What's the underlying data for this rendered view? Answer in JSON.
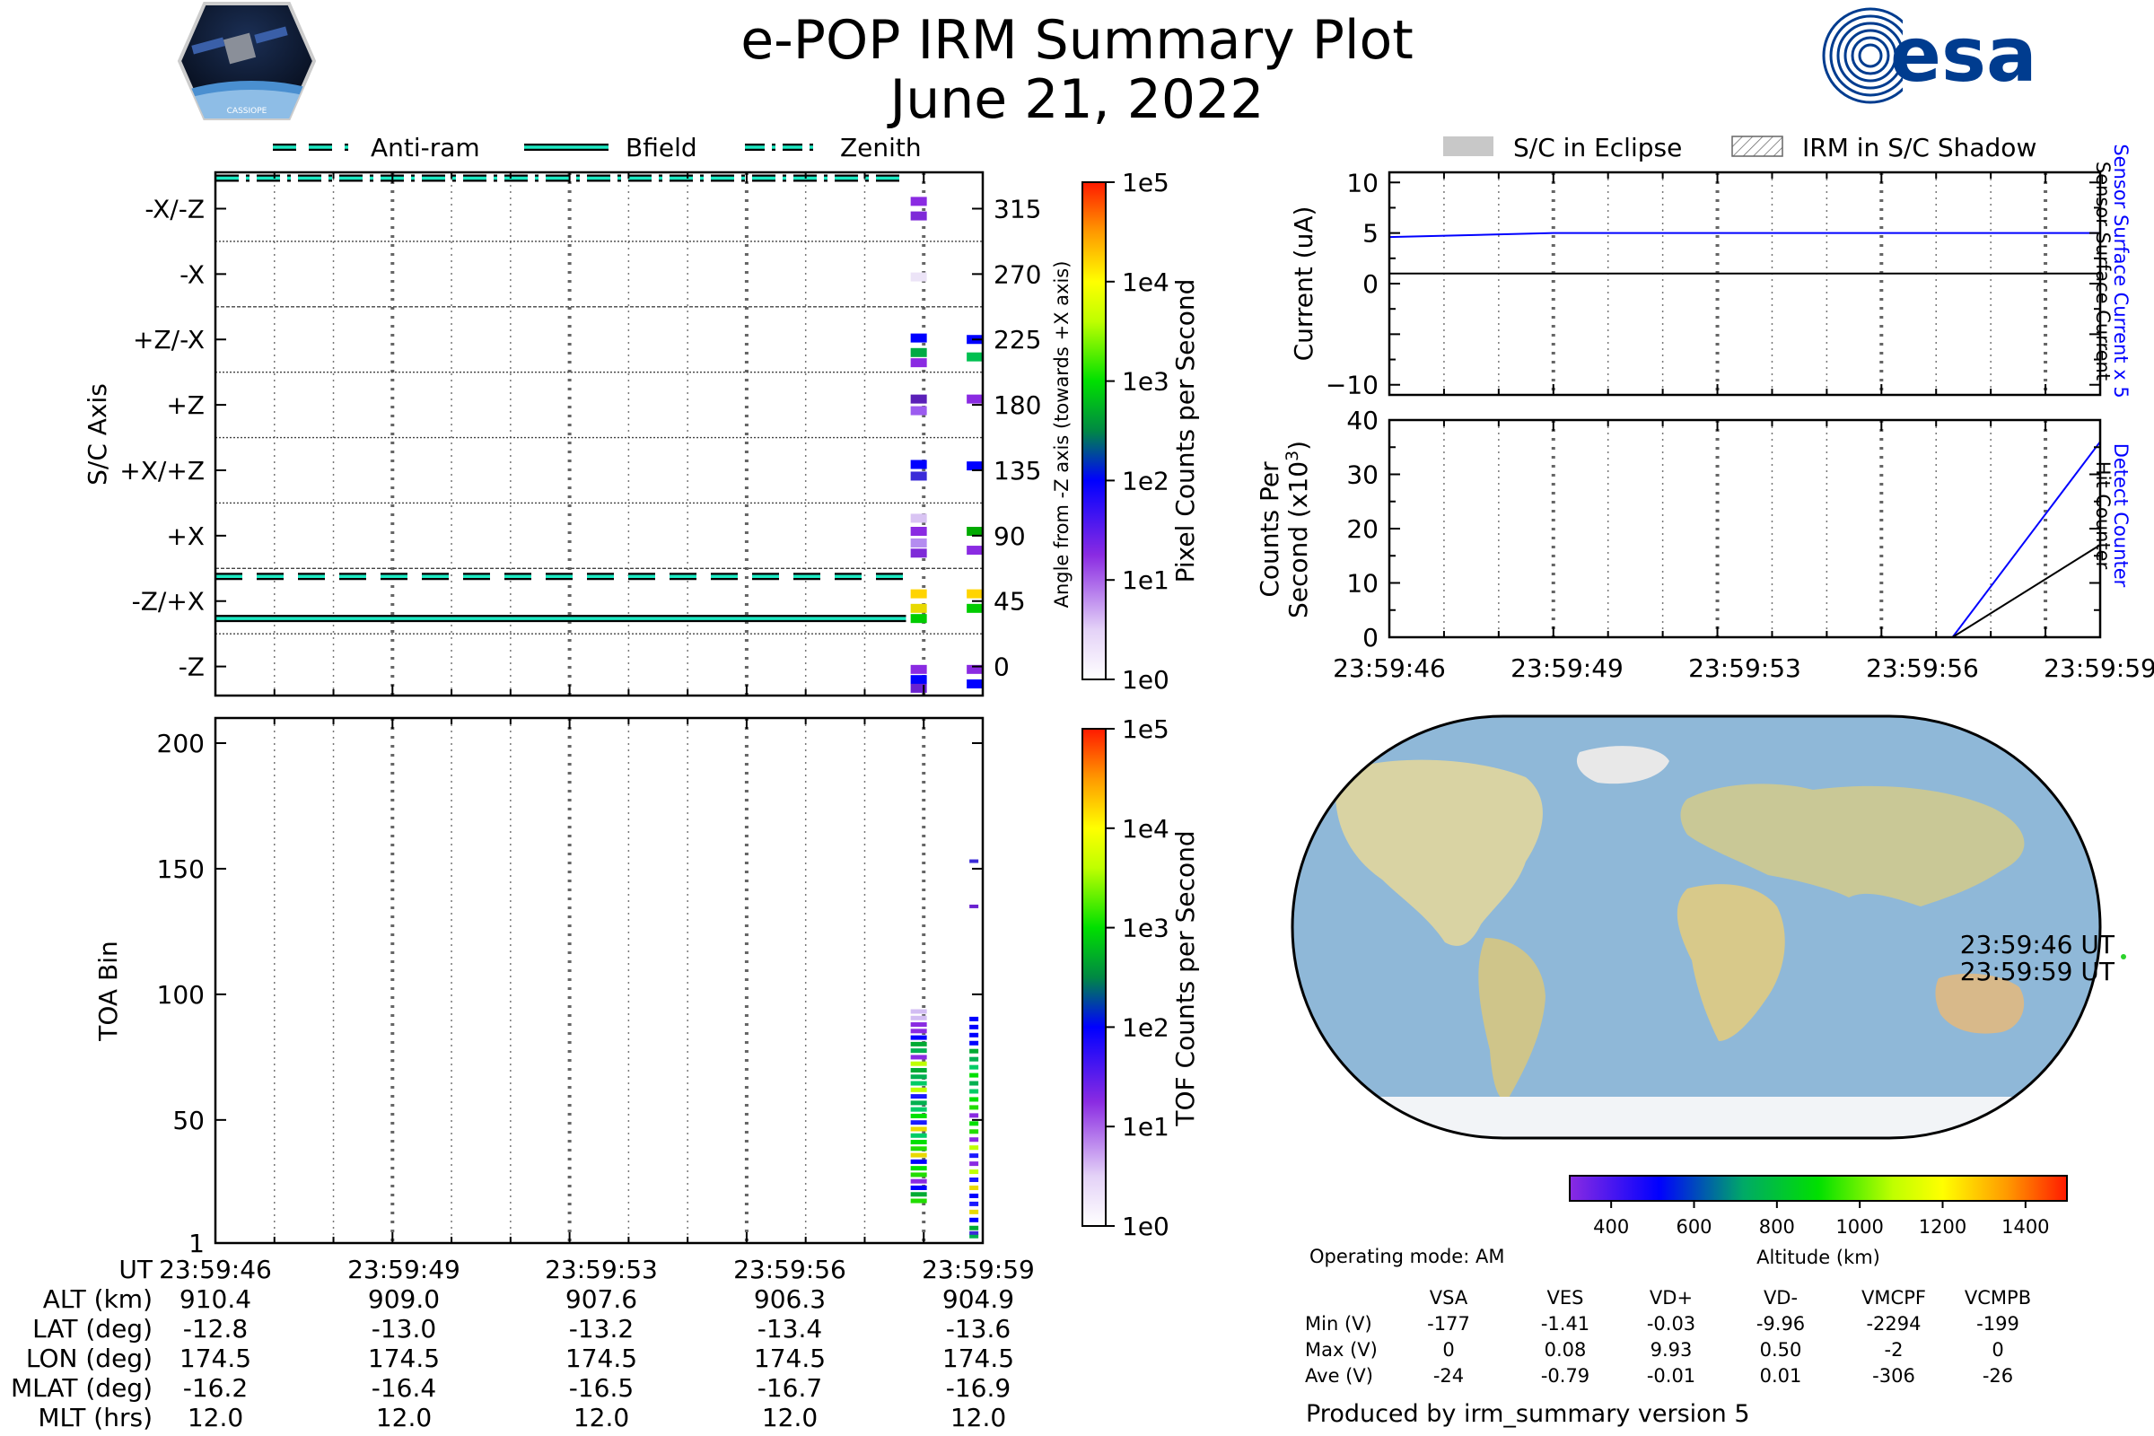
{
  "header": {
    "title": "e-POP IRM Summary Plot",
    "date": "June 21, 2022",
    "mission_logo_text": "CASSIOPE",
    "agency_logo_text": "esa"
  },
  "legend_top_left": [
    {
      "label": "Anti-ram",
      "style": "dashed"
    },
    {
      "label": "Bfield",
      "style": "solid"
    },
    {
      "label": "Zenith",
      "style": "dashdot"
    }
  ],
  "legend_top_right": [
    {
      "label": "S/C in Eclipse",
      "style": "gray-fill"
    },
    {
      "label": "IRM in S/C Shadow",
      "style": "hatch"
    }
  ],
  "colors": {
    "cyan": "#1de9c3",
    "blue_trace": "#0000ff",
    "black": "#000000"
  },
  "chart_data": [
    {
      "id": "sc_axis",
      "type": "heatmap",
      "ylabel": "S/C Axis",
      "right_ylabel": "Angle from -Z axis (towards +X axis)",
      "y_categories": [
        "-X/-Z",
        "-X",
        "+Z/-X",
        "+Z",
        "+X/+Z",
        "+X",
        "-Z/+X",
        "-Z"
      ],
      "right_ticks": [
        "315",
        "270",
        "225",
        "180",
        "135",
        "90",
        "45",
        "0"
      ],
      "ylim": [
        -20,
        340
      ],
      "time_range": [
        0,
        13
      ],
      "reference_lines": [
        {
          "name": "Zenith",
          "angle": 336,
          "style": "dashdot",
          "t_end": 11.7
        },
        {
          "name": "Anti-ram",
          "angle": 62,
          "style": "dashed",
          "t_end": 11.7
        },
        {
          "name": "Bfield",
          "angle": 33,
          "style": "solid",
          "t_end": 11.7
        }
      ],
      "colorbar": {
        "label": "Pixel Counts per Second",
        "ticks": [
          "1e0",
          "1e1",
          "1e2",
          "1e3",
          "1e4",
          "1e5"
        ]
      }
    },
    {
      "id": "toa",
      "type": "heatmap",
      "ylabel": "TOA Bin",
      "ylim": [
        1,
        210
      ],
      "yticks": [
        "1",
        "50",
        "100",
        "150",
        "200"
      ],
      "ytick_values": [
        1,
        50,
        100,
        150,
        200
      ],
      "time_range": [
        0,
        13
      ],
      "colorbar": {
        "label": "TOF Counts per Second",
        "ticks": [
          "1e0",
          "1e1",
          "1e2",
          "1e3",
          "1e4",
          "1e5"
        ]
      }
    },
    {
      "id": "current",
      "type": "line",
      "ylabel": "Current (uA)",
      "ylim": [
        -11,
        11
      ],
      "yticks": [
        "10",
        "5",
        "0",
        "−10"
      ],
      "ytick_values": [
        10,
        5,
        0,
        -10
      ],
      "right_labels": [
        "Sensor Surface Current x 5",
        "Sensor Surface Current"
      ],
      "series": [
        {
          "name": "Sensor Surface Current x 5",
          "color": "#0000ff",
          "x": [
            0,
            3,
            13
          ],
          "y": [
            4.6,
            5.0,
            5.0
          ]
        },
        {
          "name": "Sensor Surface Current",
          "color": "#000000",
          "x": [
            0,
            13
          ],
          "y": [
            1.0,
            1.0
          ]
        }
      ]
    },
    {
      "id": "counts",
      "type": "line",
      "ylabel_line1": "Counts Per",
      "ylabel_line2": "Second (x10",
      "ylabel_exp": "3",
      "ylabel_close": ")",
      "ylim": [
        0,
        40
      ],
      "yticks": [
        "40",
        "30",
        "20",
        "10",
        "0"
      ],
      "ytick_values": [
        40,
        30,
        20,
        10,
        0
      ],
      "right_labels": [
        "Detect Counter",
        "Hit Counter"
      ],
      "xticks": [
        "23:59:46",
        "23:59:49",
        "23:59:53",
        "23:59:56",
        "23:59:59"
      ],
      "series": [
        {
          "name": "Detect Counter",
          "color": "#0000ff",
          "x": [
            0,
            10.3,
            13
          ],
          "y": [
            0,
            0,
            36
          ]
        },
        {
          "name": "Hit Counter",
          "color": "#000000",
          "x": [
            0,
            10.3,
            13
          ],
          "y": [
            0,
            0,
            17
          ]
        }
      ]
    }
  ],
  "time_axis": {
    "labels": [
      "23:59:46",
      "23:59:49",
      "23:59:53",
      "23:59:56",
      "23:59:59"
    ]
  },
  "orbit_table": {
    "rows": [
      {
        "label": "UT",
        "values": [
          "23:59:46",
          "23:59:49",
          "23:59:53",
          "23:59:56",
          "23:59:59"
        ]
      },
      {
        "label": "ALT (km)",
        "values": [
          "910.4",
          "909.0",
          "907.6",
          "906.3",
          "904.9"
        ]
      },
      {
        "label": "LAT (deg)",
        "values": [
          "-12.8",
          "-13.0",
          "-13.2",
          "-13.4",
          "-13.6"
        ]
      },
      {
        "label": "LON (deg)",
        "values": [
          "174.5",
          "174.5",
          "174.5",
          "174.5",
          "174.5"
        ]
      },
      {
        "label": "MLAT (deg)",
        "values": [
          "-16.2",
          "-16.4",
          "-16.5",
          "-16.7",
          "-16.9"
        ]
      },
      {
        "label": "MLT (hrs)",
        "values": [
          "12.0",
          "12.0",
          "12.0",
          "12.0",
          "12.0"
        ]
      }
    ]
  },
  "map": {
    "start_label": "23:59:46 UT",
    "end_label": "23:59:59 UT",
    "colorbar_label": "Altitude (km)",
    "colorbar_ticks": [
      "400",
      "600",
      "800",
      "1000",
      "1200",
      "1400"
    ]
  },
  "voltage_table": {
    "mode": "Operating mode: AM",
    "columns": [
      "VSA",
      "VES",
      "VD+",
      "VD-",
      "VMCPF",
      "VCMPB"
    ],
    "rows": [
      {
        "label": "Min (V)",
        "values": [
          "-177",
          "-1.41",
          "-0.03",
          "-9.96",
          "-2294",
          "-199"
        ]
      },
      {
        "label": "Max (V)",
        "values": [
          "0",
          "0.08",
          "9.93",
          "0.50",
          "-2",
          "0"
        ]
      },
      {
        "label": "Ave (V)",
        "values": [
          "-24",
          "-0.79",
          "-0.01",
          "0.01",
          "-306",
          "-26"
        ]
      }
    ]
  },
  "footer": {
    "produced_by": "Produced by irm_summary version 5"
  }
}
